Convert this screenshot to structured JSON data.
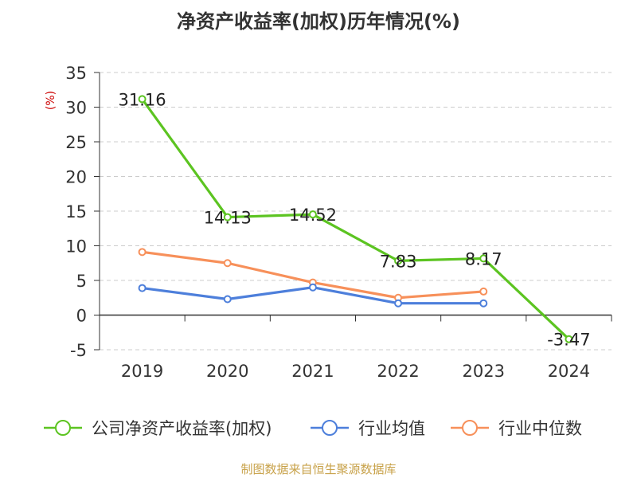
{
  "chart_data": {
    "type": "line",
    "title": "净资产收益率(加权)历年情况(%)",
    "ylabel": "(%)",
    "xlabel": "",
    "categories": [
      "2019",
      "2020",
      "2021",
      "2022",
      "2023",
      "2024"
    ],
    "ylim": [
      -5,
      35
    ],
    "yticks": [
      -5,
      0,
      5,
      10,
      15,
      20,
      25,
      30,
      35
    ],
    "grid": true,
    "legend_position": "bottom",
    "series": [
      {
        "name": "公司净资产收益率(加权)",
        "color": "#5cc421",
        "values": [
          31.16,
          14.13,
          14.52,
          7.83,
          8.17,
          -3.47
        ],
        "data_labels": [
          "31.16",
          "14.13",
          "14.52",
          "7.83",
          "8.17",
          "-3.47"
        ]
      },
      {
        "name": "行业均值",
        "color": "#4d7fdb",
        "values": [
          3.9,
          2.3,
          4.0,
          1.7,
          1.7,
          null
        ]
      },
      {
        "name": "行业中位数",
        "color": "#f7905a",
        "values": [
          9.1,
          7.5,
          4.7,
          2.5,
          3.4,
          null
        ]
      }
    ],
    "source": "制图数据来自恒生聚源数据库"
  }
}
